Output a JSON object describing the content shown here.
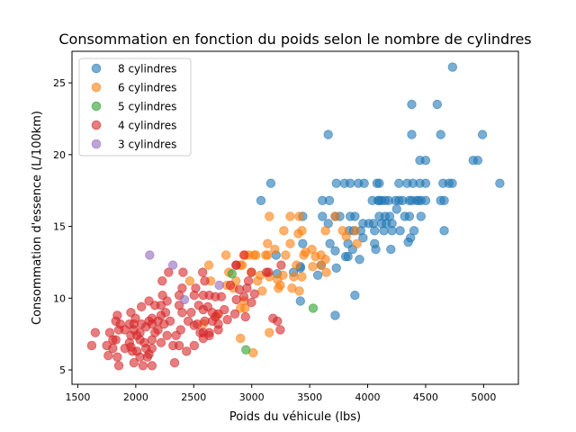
{
  "chart_data": {
    "type": "scatter",
    "title": "Consommation en fonction du poids selon le nombre de cylindres",
    "xlabel": "Poids du véhicule (lbs)",
    "ylabel": "Consommation d'essence (L/100km)",
    "xlim": [
      1450,
      5300
    ],
    "ylim": [
      4.0,
      27.2
    ],
    "xticks": [
      1500,
      2000,
      2500,
      3000,
      3500,
      4000,
      4500,
      5000
    ],
    "yticks": [
      5,
      10,
      15,
      20,
      25
    ],
    "grid": false,
    "legend_position": "top-left",
    "series": [
      {
        "name": "8 cylindres",
        "color": "#1f77b4",
        "points": [
          [
            4732,
            26.1
          ],
          [
            4380,
            23.5
          ],
          [
            4600,
            23.5
          ],
          [
            3660,
            21.4
          ],
          [
            4380,
            21.4
          ],
          [
            4630,
            21.4
          ],
          [
            4990,
            21.4
          ],
          [
            4450,
            19.6
          ],
          [
            4500,
            19.6
          ],
          [
            4910,
            19.6
          ],
          [
            4950,
            19.6
          ],
          [
            3165,
            18
          ],
          [
            3730,
            18
          ],
          [
            3800,
            18
          ],
          [
            3850,
            18
          ],
          [
            3920,
            18
          ],
          [
            3970,
            18
          ],
          [
            4080,
            18
          ],
          [
            4100,
            18
          ],
          [
            4270,
            18
          ],
          [
            4340,
            18
          ],
          [
            4390,
            18
          ],
          [
            4450,
            18
          ],
          [
            4500,
            18
          ],
          [
            4650,
            18
          ],
          [
            4700,
            18
          ],
          [
            4730,
            18
          ],
          [
            5140,
            18
          ],
          [
            3080,
            16.8
          ],
          [
            3610,
            16.8
          ],
          [
            3670,
            16.8
          ],
          [
            4040,
            16.8
          ],
          [
            4090,
            16.8
          ],
          [
            4100,
            16.8
          ],
          [
            4120,
            16.8
          ],
          [
            4150,
            16.8
          ],
          [
            4180,
            16.8
          ],
          [
            4240,
            16.8
          ],
          [
            4270,
            16.8
          ],
          [
            4300,
            16.8
          ],
          [
            4360,
            16.8
          ],
          [
            4380,
            16.8
          ],
          [
            4420,
            16.8
          ],
          [
            4440,
            16.8
          ],
          [
            4460,
            16.8
          ],
          [
            4500,
            16.8
          ],
          [
            4630,
            16.8
          ],
          [
            4660,
            16.8
          ],
          [
            4250,
            16.2
          ],
          [
            3440,
            15.7
          ],
          [
            3610,
            15.7
          ],
          [
            3720,
            15.7
          ],
          [
            3760,
            15.7
          ],
          [
            3850,
            15.7
          ],
          [
            3890,
            15.7
          ],
          [
            4100,
            15.7
          ],
          [
            4150,
            15.7
          ],
          [
            4190,
            15.7
          ],
          [
            4320,
            15.7
          ],
          [
            4360,
            15.7
          ],
          [
            4460,
            15.7
          ],
          [
            3660,
            15.2
          ],
          [
            4010,
            15.2
          ],
          [
            4120,
            15.2
          ],
          [
            4160,
            15.2
          ],
          [
            4210,
            15.2
          ],
          [
            3960,
            15.2
          ],
          [
            4050,
            15.2
          ],
          [
            3840,
            14.7
          ],
          [
            3880,
            14.7
          ],
          [
            3940,
            14.7
          ],
          [
            4060,
            14.7
          ],
          [
            4140,
            14.7
          ],
          [
            4210,
            14.7
          ],
          [
            4280,
            14.7
          ],
          [
            4400,
            14.7
          ],
          [
            4660,
            14.7
          ],
          [
            3440,
            13.8
          ],
          [
            3675,
            13.8
          ],
          [
            3830,
            13.8
          ],
          [
            4060,
            13.8
          ],
          [
            4350,
            13.9
          ],
          [
            4370,
            14.2
          ],
          [
            3960,
            14.2
          ],
          [
            3720,
            13.3
          ],
          [
            3870,
            13.4
          ],
          [
            4070,
            13.4
          ],
          [
            4200,
            13.4
          ],
          [
            3830,
            12.9
          ],
          [
            3930,
            12.7
          ],
          [
            3730,
            12.1
          ],
          [
            3570,
            11.6
          ],
          [
            3420,
            12.1
          ],
          [
            3890,
            10.2
          ],
          [
            3420,
            9.8
          ],
          [
            3720,
            8.8
          ],
          [
            3210,
            13.0
          ],
          [
            3220,
            11.7
          ],
          [
            3360,
            11.8
          ],
          [
            3420,
            12.2
          ],
          [
            3600,
            12.3
          ],
          [
            3810,
            12.9
          ]
        ]
      },
      {
        "name": "6 cylindres",
        "color": "#ff7f0e",
        "points": [
          [
            3152,
            15.7
          ],
          [
            3332,
            15.7
          ],
          [
            3410,
            15.7
          ],
          [
            3721,
            15.7
          ],
          [
            3277,
            14.7
          ],
          [
            3402,
            14.5
          ],
          [
            3433,
            14.7
          ],
          [
            3636,
            14.7
          ],
          [
            3784,
            14.7
          ],
          [
            3815,
            14.3
          ],
          [
            3893,
            14.7
          ],
          [
            3908,
            13.8
          ],
          [
            3137,
            13.8
          ],
          [
            3332,
            13.8
          ],
          [
            3199,
            13.4
          ],
          [
            2778,
            13.0
          ],
          [
            2942,
            13.0
          ],
          [
            3020,
            13.0
          ],
          [
            3121,
            13.0
          ],
          [
            3137,
            13.0
          ],
          [
            3293,
            13.0
          ],
          [
            3464,
            13.2
          ],
          [
            3519,
            13.4
          ],
          [
            3597,
            13.0
          ],
          [
            3636,
            12.7
          ],
          [
            3449,
            13.0
          ],
          [
            3526,
            12.2
          ],
          [
            3643,
            11.8
          ],
          [
            3386,
            12.3
          ],
          [
            3363,
            11.5
          ],
          [
            3433,
            11.5
          ],
          [
            3269,
            11.6
          ],
          [
            3152,
            11.5
          ],
          [
            3230,
            10.7
          ],
          [
            3347,
            10.7
          ],
          [
            3410,
            10.5
          ],
          [
            3074,
            11.6
          ],
          [
            3051,
            11.2
          ],
          [
            2996,
            11.8
          ],
          [
            2903,
            12.3
          ],
          [
            2630,
            12.3
          ],
          [
            2864,
            11.2
          ],
          [
            3090,
            10.5
          ],
          [
            2934,
            9.8
          ],
          [
            2903,
            9.3
          ],
          [
            2942,
            9.3
          ],
          [
            3152,
            7.6
          ],
          [
            2903,
            7.2
          ],
          [
            3012,
            6.2
          ],
          [
            3222,
            11.3
          ],
          [
            3246,
            10.9
          ],
          [
            2973,
            13.0
          ],
          [
            3035,
            13.0
          ],
          [
            2802,
            11.8
          ],
          [
            2918,
            12.3
          ],
          [
            2466,
            11.2
          ],
          [
            2646,
            11.2
          ],
          [
            2786,
            10.9
          ],
          [
            2841,
            10.7
          ],
          [
            2583,
            8.2
          ],
          [
            2700,
            8.8
          ],
          [
            3550,
            12.9
          ],
          [
            3597,
            12.3
          ]
        ]
      },
      {
        "name": "5 cylindres",
        "color": "#2ca02c",
        "points": [
          [
            2830,
            11.7
          ],
          [
            2950,
            6.4
          ],
          [
            3530,
            9.3
          ]
        ]
      },
      {
        "name": "4 cylindres",
        "color": "#d62728",
        "points": [
          [
            2933,
            13.0
          ],
          [
            2868,
            12.3
          ],
          [
            2283,
            11.8
          ],
          [
            2408,
            11.8
          ],
          [
            2577,
            11.8
          ],
          [
            2228,
            11.2
          ],
          [
            2400,
            10.7
          ],
          [
            2517,
            10.7
          ],
          [
            2595,
            11.2
          ],
          [
            2816,
            10.9
          ],
          [
            2894,
            10.6
          ],
          [
            2959,
            10.7
          ],
          [
            3024,
            10.3
          ],
          [
            2998,
            9.7
          ],
          [
            3128,
            11.8
          ],
          [
            2972,
            11.2
          ],
          [
            2868,
            9.9
          ],
          [
            2933,
            10.1
          ],
          [
            2855,
            8.9
          ],
          [
            2946,
            8.7
          ],
          [
            2738,
            10.1
          ],
          [
            2686,
            10.1
          ],
          [
            2634,
            10.2
          ],
          [
            2582,
            10.2
          ],
          [
            2504,
            10.2
          ],
          [
            2543,
            9.5
          ],
          [
            2621,
            9.4
          ],
          [
            2660,
            9.0
          ],
          [
            2712,
            8.9
          ],
          [
            2764,
            9.2
          ],
          [
            2478,
            9.0
          ],
          [
            2452,
            8.4
          ],
          [
            2530,
            8.2
          ],
          [
            2582,
            7.6
          ],
          [
            2634,
            7.4
          ],
          [
            2712,
            7.8
          ],
          [
            2595,
            8.4
          ],
          [
            2660,
            8.4
          ],
          [
            2686,
            8.7
          ],
          [
            2231,
            10.2
          ],
          [
            2270,
            9.8
          ],
          [
            2218,
            9.5
          ],
          [
            2166,
            9.5
          ],
          [
            2114,
            9.8
          ],
          [
            2049,
            9.4
          ],
          [
            2257,
            9.0
          ],
          [
            2296,
            8.4
          ],
          [
            2218,
            8.8
          ],
          [
            2140,
            8.6
          ],
          [
            2140,
            8.2
          ],
          [
            2192,
            7.8
          ],
          [
            2218,
            6.9
          ],
          [
            2140,
            6.5
          ],
          [
            2101,
            5.9
          ],
          [
            2140,
            5.3
          ],
          [
            2062,
            5.3
          ],
          [
            1984,
            5.5
          ],
          [
            2075,
            6.9
          ],
          [
            2036,
            7.6
          ],
          [
            1958,
            7.4
          ],
          [
            1984,
            7.8
          ],
          [
            1906,
            7.8
          ],
          [
            1945,
            8.2
          ],
          [
            1867,
            8.2
          ],
          [
            1841,
            8.8
          ],
          [
            1958,
            9.0
          ],
          [
            1828,
            8.4
          ],
          [
            1776,
            7.6
          ],
          [
            1750,
            6.7
          ],
          [
            1763,
            6.0
          ],
          [
            1841,
            5.9
          ],
          [
            1854,
            5.3
          ],
          [
            1802,
            6.5
          ],
          [
            1828,
            7.1
          ],
          [
            1906,
            6.5
          ],
          [
            1971,
            6.3
          ],
          [
            2010,
            6.3
          ],
          [
            2088,
            6.5
          ],
          [
            2140,
            7.1
          ],
          [
            2270,
            7.4
          ],
          [
            2348,
            7.4
          ],
          [
            2374,
            6.7
          ],
          [
            2335,
            5.5
          ],
          [
            2438,
            6.3
          ],
          [
            2504,
            6.7
          ],
          [
            2387,
            7.8
          ],
          [
            2400,
            9.0
          ],
          [
            2374,
            9.5
          ],
          [
            2504,
            8.1
          ],
          [
            2556,
            7.6
          ],
          [
            2634,
            7.6
          ],
          [
            2582,
            7.2
          ],
          [
            2712,
            8.2
          ],
          [
            2790,
            8.5
          ],
          [
            1620,
            6.7
          ],
          [
            1651,
            7.6
          ],
          [
            2049,
            8.2
          ],
          [
            2114,
            8.4
          ],
          [
            2192,
            8.4
          ],
          [
            2244,
            8.2
          ],
          [
            2036,
            7.1
          ],
          [
            1997,
            8.6
          ],
          [
            1945,
            6.9
          ],
          [
            1984,
            8.2
          ],
          [
            2010,
            7.4
          ],
          [
            2088,
            8.0
          ],
          [
            2166,
            7.6
          ],
          [
            2322,
            6.7
          ],
          [
            1854,
            7.8
          ],
          [
            1802,
            7.1
          ],
          [
            1958,
            6.6
          ],
          [
            2036,
            5.9
          ],
          [
            2114,
            6.1
          ],
          [
            2374,
            10.2
          ],
          [
            2582,
            9.2
          ],
          [
            2998,
            11.8
          ],
          [
            3254,
            12.3
          ],
          [
            2864,
            12.3
          ],
          [
            3145,
            11.8
          ],
          [
            3183,
            8.6
          ],
          [
            3222,
            8.4
          ],
          [
            3246,
            7.8
          ]
        ]
      },
      {
        "name": "3 cylindres",
        "color": "#9467bd",
        "points": [
          [
            2120,
            13.0
          ],
          [
            2320,
            12.3
          ],
          [
            2720,
            10.9
          ],
          [
            2420,
            9.9
          ]
        ]
      }
    ]
  }
}
